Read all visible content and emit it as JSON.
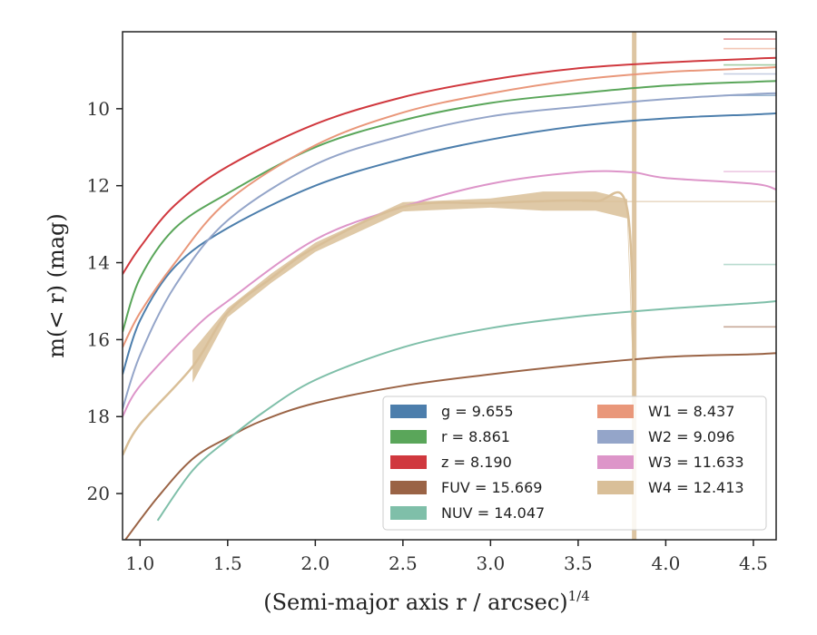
{
  "chart_data": {
    "type": "line",
    "xlabel": "(Semi-major axis r / arcsec)",
    "xlabel_superscript": "1/4",
    "ylabel": "m(< r) (mag)",
    "xlim": [
      0.9,
      4.63
    ],
    "ylim": [
      21.2,
      8.0
    ],
    "y_inverted": true,
    "x_ticks": [
      1.0,
      1.5,
      2.0,
      2.5,
      3.0,
      3.5,
      4.0,
      4.5
    ],
    "x_tick_labels": [
      "1.0",
      "1.5",
      "2.0",
      "2.5",
      "3.0",
      "3.5",
      "4.0",
      "4.5"
    ],
    "y_ticks": [
      10,
      12,
      14,
      16,
      18,
      20
    ],
    "y_tick_labels": [
      "10",
      "12",
      "14",
      "16",
      "18",
      "20"
    ],
    "grid": false,
    "legend_placement": "lower-right",
    "vertical_band_x": 3.82,
    "legend": [
      {
        "label": "g = 9.655",
        "color": "#4c7eac"
      },
      {
        "label": "W1 = 8.437",
        "color": "#e9977a"
      },
      {
        "label": "r = 8.861",
        "color": "#5aa65a"
      },
      {
        "label": "W2 = 9.096",
        "color": "#94a5c9"
      },
      {
        "label": "z = 8.190",
        "color": "#d0383e"
      },
      {
        "label": "W3 = 11.633",
        "color": "#dd95c9"
      },
      {
        "label": "FUV = 15.669",
        "color": "#9a6345"
      },
      {
        "label": "W4 = 12.413",
        "color": "#d9bf98"
      },
      {
        "label": "NUV = 14.047",
        "color": "#7fbfa9"
      }
    ],
    "series": [
      {
        "name": "g",
        "color": "#4c7eac",
        "asymptote": 9.655,
        "x": [
          0.9,
          1.0,
          1.2,
          1.5,
          2.0,
          2.5,
          3.0,
          3.5,
          4.0,
          4.5,
          4.63
        ],
        "y": [
          16.9,
          15.5,
          14.1,
          13.1,
          12.0,
          11.3,
          10.8,
          10.45,
          10.25,
          10.15,
          10.12
        ]
      },
      {
        "name": "r",
        "color": "#5aa65a",
        "asymptote": 8.861,
        "x": [
          0.9,
          1.0,
          1.2,
          1.5,
          2.0,
          2.5,
          3.0,
          3.5,
          4.0,
          4.5,
          4.63
        ],
        "y": [
          15.8,
          14.4,
          13.1,
          12.2,
          11.0,
          10.3,
          9.85,
          9.6,
          9.4,
          9.3,
          9.28
        ]
      },
      {
        "name": "z",
        "color": "#d0383e",
        "asymptote": 8.19,
        "x": [
          0.9,
          1.0,
          1.2,
          1.5,
          2.0,
          2.5,
          3.0,
          3.5,
          4.0,
          4.5,
          4.63
        ],
        "y": [
          14.3,
          13.6,
          12.5,
          11.5,
          10.4,
          9.7,
          9.25,
          8.95,
          8.8,
          8.7,
          8.68
        ]
      },
      {
        "name": "FUV",
        "color": "#9a6345",
        "asymptote": 15.669,
        "x": [
          0.9,
          1.1,
          1.3,
          1.5,
          1.7,
          2.0,
          2.5,
          3.0,
          3.5,
          4.0,
          4.5,
          4.63
        ],
        "y": [
          21.3,
          20.1,
          19.1,
          18.55,
          18.1,
          17.65,
          17.2,
          16.9,
          16.65,
          16.45,
          16.38,
          16.35
        ]
      },
      {
        "name": "NUV",
        "color": "#7fbfa9",
        "asymptote": 14.047,
        "x": [
          1.1,
          1.3,
          1.5,
          1.7,
          2.0,
          2.5,
          3.0,
          3.5,
          4.0,
          4.5,
          4.63
        ],
        "y": [
          20.7,
          19.4,
          18.6,
          17.9,
          17.05,
          16.2,
          15.7,
          15.4,
          15.2,
          15.05,
          15.0
        ]
      },
      {
        "name": "W1",
        "color": "#e9977a",
        "asymptote": 8.437,
        "x": [
          0.9,
          1.0,
          1.2,
          1.5,
          2.0,
          2.5,
          3.0,
          3.5,
          4.0,
          4.5,
          4.63
        ],
        "y": [
          16.2,
          15.3,
          14.0,
          12.4,
          10.95,
          10.1,
          9.6,
          9.25,
          9.05,
          8.95,
          8.92
        ]
      },
      {
        "name": "W2",
        "color": "#94a5c9",
        "asymptote": 9.096,
        "x": [
          0.9,
          1.0,
          1.2,
          1.5,
          2.0,
          2.5,
          3.0,
          3.5,
          4.0,
          4.5,
          4.63
        ],
        "y": [
          17.8,
          16.4,
          14.6,
          12.9,
          11.45,
          10.7,
          10.2,
          9.95,
          9.75,
          9.62,
          9.6
        ]
      },
      {
        "name": "W3",
        "color": "#dd95c9",
        "asymptote": 11.633,
        "x": [
          0.9,
          1.0,
          1.3,
          1.5,
          2.0,
          2.5,
          3.0,
          3.5,
          3.8,
          4.0,
          4.5,
          4.63
        ],
        "y": [
          18.0,
          17.2,
          15.75,
          15.0,
          13.4,
          12.55,
          11.95,
          11.65,
          11.65,
          11.8,
          11.95,
          12.1
        ]
      },
      {
        "name": "W4",
        "color": "#d9bf98",
        "asymptote": 12.413,
        "x": [
          0.9,
          1.0,
          1.3,
          1.5,
          1.75,
          2.0,
          2.5,
          3.0,
          3.3,
          3.6,
          3.78,
          3.82
        ],
        "y": [
          19.0,
          18.2,
          16.7,
          15.3,
          14.4,
          13.6,
          12.55,
          12.45,
          12.4,
          12.4,
          12.6,
          17.5
        ]
      }
    ]
  }
}
